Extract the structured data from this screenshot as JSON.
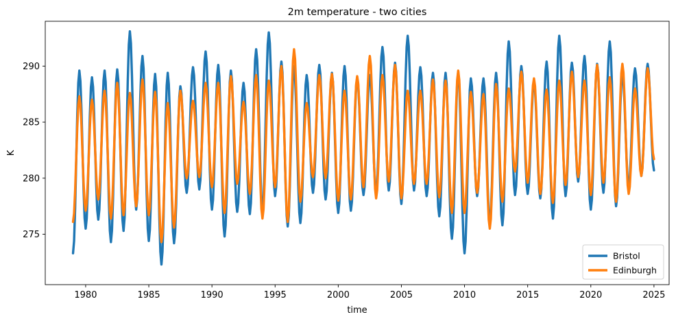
{
  "chart_data": {
    "type": "line",
    "title": "2m temperature - two cities",
    "xlabel": "time",
    "ylabel": "K",
    "xlim": [
      1976.8,
      2026.2
    ],
    "ylim": [
      270.5,
      294.0
    ],
    "xticks": [
      1980,
      1985,
      1990,
      1995,
      2000,
      2005,
      2010,
      2015,
      2020,
      2025
    ],
    "yticks": [
      275,
      280,
      285,
      290
    ],
    "grid": false,
    "legend_position": "lower-right",
    "series": [
      {
        "name": "Bristol",
        "color": "#1f77b4",
        "x_start": 1979.0,
        "x_step_years": 0.0833333,
        "summer_peaks": [
          289.6,
          289.0,
          289.6,
          289.7,
          293.1,
          290.9,
          289.3,
          289.4,
          288.2,
          289.9,
          291.3,
          290.1,
          289.6,
          288.5,
          291.5,
          293.0,
          290.4,
          290.0,
          289.2,
          290.1,
          289.4,
          290.0,
          289.0,
          289.2,
          291.7,
          290.3,
          292.7,
          289.9,
          289.4,
          289.4,
          289.5,
          288.9,
          288.9,
          289.4,
          292.2,
          290.0,
          288.6,
          290.4,
          292.7,
          290.3,
          290.9,
          290.2,
          292.2,
          289.3,
          289.8,
          290.2
        ],
        "winter_troughs": [
          273.3,
          275.5,
          276.3,
          274.3,
          275.3,
          277.2,
          274.4,
          272.3,
          274.2,
          278.7,
          279.0,
          277.2,
          274.8,
          277.0,
          276.8,
          277.0,
          278.4,
          275.7,
          276.0,
          278.7,
          278.1,
          276.9,
          277.1,
          278.5,
          278.7,
          278.9,
          277.7,
          278.9,
          278.4,
          276.6,
          274.6,
          273.3,
          278.4,
          276.0,
          275.8,
          278.5,
          278.6,
          278.2,
          276.4,
          278.4,
          279.7,
          277.2,
          278.7,
          277.5,
          279.2,
          280.2,
          280.7
        ]
      },
      {
        "name": "Edinburgh",
        "color": "#ff7f0e",
        "x_start": 1979.0,
        "x_step_years": 0.0833333,
        "summer_peaks": [
          287.3,
          287.0,
          287.8,
          288.5,
          287.6,
          288.8,
          287.7,
          286.7,
          287.8,
          286.9,
          288.5,
          288.5,
          289.1,
          286.8,
          289.2,
          288.7,
          290.0,
          291.5,
          286.7,
          289.2,
          289.3,
          287.8,
          289.1,
          290.9,
          289.2,
          290.1,
          287.8,
          287.8,
          288.8,
          288.7,
          289.6,
          287.7,
          287.5,
          288.4,
          288.0,
          289.5,
          288.9,
          287.9,
          288.7,
          289.5,
          288.7,
          290.1,
          289.0,
          290.2,
          288.0,
          289.8
        ],
        "winter_troughs": [
          276.1,
          277.1,
          278.1,
          276.4,
          276.7,
          277.5,
          276.7,
          274.3,
          275.6,
          280.0,
          280.1,
          279.2,
          276.9,
          279.5,
          278.6,
          276.4,
          279.2,
          276.1,
          277.9,
          280.1,
          280.0,
          278.0,
          278.1,
          279.2,
          278.2,
          279.7,
          278.2,
          279.5,
          279.5,
          278.3,
          276.9,
          276.9,
          278.7,
          275.5,
          277.9,
          280.6,
          279.6,
          278.6,
          277.8,
          279.4,
          280.1,
          278.5,
          279.6,
          277.9,
          278.6,
          280.2,
          281.7
        ]
      }
    ]
  }
}
